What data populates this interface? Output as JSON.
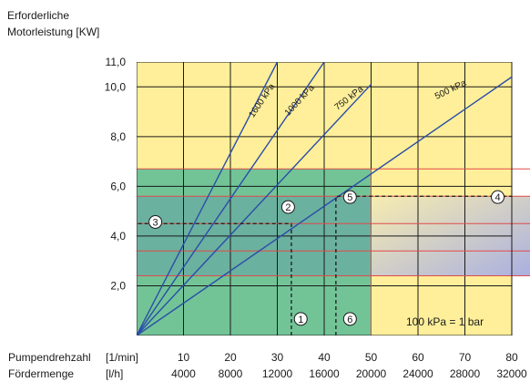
{
  "chart_data": {
    "type": "line",
    "ylabel_lines": [
      "Erforderliche",
      "Motorleistung [KW]"
    ],
    "y_ticks": [
      "2,0",
      "4,0",
      "6,0",
      "8,0",
      "10,0",
      "11,0"
    ],
    "y_tick_values": [
      2,
      4,
      6,
      8,
      10,
      11
    ],
    "ylim": [
      0,
      11
    ],
    "xlim": [
      0,
      80
    ],
    "x_rows": [
      {
        "label": "Pumpendrehzahl",
        "unit": "[1/min]",
        "ticks": [
          "10",
          "20",
          "30",
          "40",
          "50",
          "60",
          "70",
          "80"
        ]
      },
      {
        "label": "Fördermenge",
        "unit": "[l/h]",
        "ticks": [
          "4000",
          "8000",
          "12000",
          "16000",
          "20000",
          "24000",
          "28000",
          "32000"
        ]
      }
    ],
    "series": [
      {
        "name": "1600 kPa",
        "x": [
          0,
          30
        ],
        "y": [
          0,
          11
        ]
      },
      {
        "name": "1000 kPa",
        "x": [
          0,
          40
        ],
        "y": [
          0,
          11
        ]
      },
      {
        "name": "750 kPa",
        "x": [
          0,
          50
        ],
        "y": [
          0,
          10.1
        ]
      },
      {
        "name": "500 kPa",
        "x": [
          0,
          80
        ],
        "y": [
          0,
          10.4
        ]
      }
    ],
    "regions": {
      "green_area": {
        "x": [
          0,
          50
        ],
        "y": [
          0,
          6.7
        ]
      },
      "gradient_band": {
        "x": [
          50,
          80
        ],
        "y": [
          2.4,
          5.6
        ]
      }
    },
    "horizontal_lines_red": [
      2.4,
      3.4,
      4.5,
      5.6,
      6.7
    ],
    "markers": [
      {
        "label": "1",
        "x": 35,
        "y": 0.3
      },
      {
        "label": "2",
        "x": 32.7,
        "y": 4.8
      },
      {
        "label": "3",
        "x": 4,
        "y": 4.2
      },
      {
        "label": "4",
        "x": 77,
        "y": 5.2
      },
      {
        "label": "5",
        "x": 45.5,
        "y": 5.2
      },
      {
        "label": "6",
        "x": 45.5,
        "y": 0.3
      }
    ],
    "guides_dashed": [
      {
        "points": [
          [
            33,
            0
          ],
          [
            33,
            4.5
          ],
          [
            0,
            4.5
          ]
        ]
      },
      {
        "points": [
          [
            42.5,
            0
          ],
          [
            42.5,
            5.6
          ],
          [
            80,
            5.6
          ]
        ]
      }
    ],
    "annotation": "100 kPa = 1 bar",
    "grid": true,
    "colors": {
      "plot_background": "#ffef9a",
      "green_area": "#72c497",
      "series_line": "#2b4da8",
      "red_line": "#e04a4a",
      "gradient_from": "#f6ecb0",
      "gradient_to": "#aab0e0"
    }
  }
}
